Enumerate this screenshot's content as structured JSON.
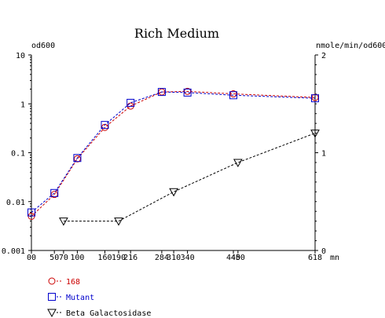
{
  "chart_data": {
    "type": "line",
    "title": "Rich Medium",
    "left_axis": {
      "label": "od600",
      "scale": "log",
      "range": [
        0.001,
        10
      ],
      "ticks": [
        "0.001",
        "0.01",
        "0.1",
        "1",
        "10"
      ]
    },
    "right_axis": {
      "label": "nmole/min/od600",
      "scale": "linear",
      "range": [
        0,
        2
      ],
      "ticks": [
        "0",
        "1",
        "2"
      ]
    },
    "x_axis": {
      "unit_label": "mn",
      "range": [
        0,
        618
      ],
      "tick_values": [
        0,
        50,
        70,
        100,
        160,
        190,
        216,
        284,
        310,
        340,
        440,
        450,
        618
      ],
      "tick_labels": [
        "00",
        "50",
        "70",
        "100",
        "160",
        "190",
        "216",
        "284",
        "310",
        "340",
        "440",
        "450",
        "618"
      ]
    },
    "series": [
      {
        "name": "168",
        "axis": "left",
        "color": "#cc0000",
        "marker": "circle",
        "x": [
          0,
          50,
          100,
          160,
          216,
          284,
          340,
          440,
          618
        ],
        "y": [
          0.005,
          0.014,
          0.075,
          0.33,
          0.9,
          1.75,
          1.8,
          1.6,
          1.35
        ]
      },
      {
        "name": "Mutant",
        "axis": "left",
        "color": "#0000cc",
        "marker": "square",
        "x": [
          0,
          50,
          100,
          160,
          216,
          284,
          340,
          440,
          618
        ],
        "y": [
          0.006,
          0.015,
          0.078,
          0.37,
          1.05,
          1.75,
          1.7,
          1.5,
          1.3
        ]
      },
      {
        "name": "Beta Galactosidase",
        "axis": "right",
        "color": "#000000",
        "marker": "triangle-down",
        "x": [
          70,
          190,
          310,
          450,
          618
        ],
        "y": [
          0.3,
          0.3,
          0.6,
          0.9,
          1.2
        ]
      }
    ],
    "grid": false,
    "legend_position": "bottom-left"
  }
}
